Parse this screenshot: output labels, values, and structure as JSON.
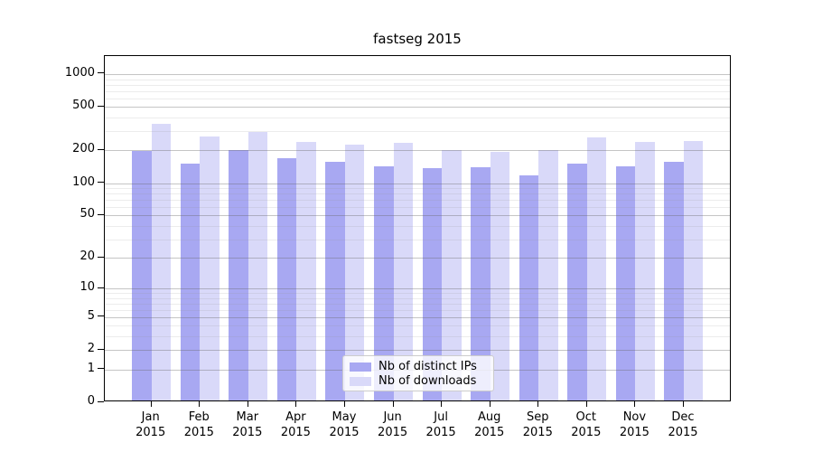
{
  "chart_data": {
    "type": "bar",
    "title": "fastseg 2015",
    "y_scale": "log1p",
    "grid": true,
    "ylim": [
      0,
      1460
    ],
    "categories": [
      {
        "m": "Jan",
        "y": "2015"
      },
      {
        "m": "Feb",
        "y": "2015"
      },
      {
        "m": "Mar",
        "y": "2015"
      },
      {
        "m": "Apr",
        "y": "2015"
      },
      {
        "m": "May",
        "y": "2015"
      },
      {
        "m": "Jun",
        "y": "2015"
      },
      {
        "m": "Jul",
        "y": "2015"
      },
      {
        "m": "Aug",
        "y": "2015"
      },
      {
        "m": "Sep",
        "y": "2015"
      },
      {
        "m": "Oct",
        "y": "2015"
      },
      {
        "m": "Nov",
        "y": "2015"
      },
      {
        "m": "Dec",
        "y": "2015"
      }
    ],
    "series": [
      {
        "name": "Nb of distinct IPs",
        "color": "#a8a8f2",
        "values": [
          190,
          145,
          193,
          162,
          152,
          138,
          132,
          134,
          113,
          145,
          137,
          150
        ]
      },
      {
        "name": "Nb of downloads",
        "color": "#d9d9f9",
        "values": [
          340,
          260,
          285,
          230,
          218,
          225,
          193,
          188,
          195,
          253,
          230,
          235
        ]
      }
    ],
    "y_ticks": [
      1000,
      500,
      200,
      100,
      50,
      20,
      10,
      5,
      2,
      1,
      0
    ],
    "y_minor_ticks": [
      3,
      4,
      6,
      7,
      8,
      9,
      30,
      40,
      60,
      70,
      80,
      90,
      300,
      400,
      600,
      700,
      800,
      900
    ],
    "legend": {
      "position": "lower center"
    }
  }
}
